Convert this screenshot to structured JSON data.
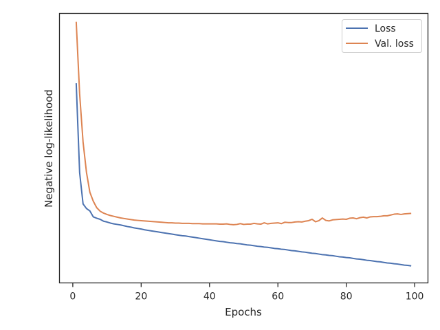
{
  "chart_data": {
    "type": "line",
    "xlabel": "Epochs",
    "ylabel": "Negative log-likelihood",
    "xlim": [
      -3.9,
      103.9
    ],
    "ylim": [
      0.0,
      1.0
    ],
    "y_tick_labels_shown": false,
    "x_ticks": [
      0,
      20,
      40,
      60,
      80,
      100
    ],
    "x_tick_labels": [
      "0",
      "20",
      "40",
      "60",
      "80",
      "100"
    ],
    "grid": false,
    "legend_position": "top-right",
    "x": [
      1,
      2,
      3,
      4,
      5,
      6,
      7,
      8,
      9,
      10,
      11,
      12,
      13,
      14,
      15,
      16,
      17,
      18,
      19,
      20,
      21,
      22,
      23,
      24,
      25,
      26,
      27,
      28,
      29,
      30,
      31,
      32,
      33,
      34,
      35,
      36,
      37,
      38,
      39,
      40,
      41,
      42,
      43,
      44,
      45,
      46,
      47,
      48,
      49,
      50,
      51,
      52,
      53,
      54,
      55,
      56,
      57,
      58,
      59,
      60,
      61,
      62,
      63,
      64,
      65,
      66,
      67,
      68,
      69,
      70,
      71,
      72,
      73,
      74,
      75,
      76,
      77,
      78,
      79,
      80,
      81,
      82,
      83,
      84,
      85,
      86,
      87,
      88,
      89,
      90,
      91,
      92,
      93,
      94,
      95,
      96,
      97,
      98,
      99
    ],
    "series": [
      {
        "name": "Loss",
        "color": "#4c72b0",
        "values": [
          0.741,
          0.409,
          0.293,
          0.276,
          0.267,
          0.245,
          0.24,
          0.236,
          0.229,
          0.226,
          0.222,
          0.219,
          0.217,
          0.215,
          0.212,
          0.209,
          0.207,
          0.204,
          0.202,
          0.2,
          0.197,
          0.195,
          0.193,
          0.191,
          0.189,
          0.187,
          0.185,
          0.183,
          0.181,
          0.179,
          0.177,
          0.175,
          0.174,
          0.172,
          0.17,
          0.168,
          0.166,
          0.164,
          0.162,
          0.16,
          0.158,
          0.156,
          0.154,
          0.153,
          0.151,
          0.149,
          0.148,
          0.146,
          0.145,
          0.143,
          0.141,
          0.14,
          0.138,
          0.136,
          0.135,
          0.133,
          0.132,
          0.13,
          0.128,
          0.127,
          0.125,
          0.124,
          0.122,
          0.12,
          0.119,
          0.117,
          0.115,
          0.114,
          0.112,
          0.11,
          0.109,
          0.107,
          0.105,
          0.104,
          0.102,
          0.101,
          0.099,
          0.097,
          0.096,
          0.094,
          0.093,
          0.091,
          0.089,
          0.088,
          0.086,
          0.084,
          0.083,
          0.081,
          0.079,
          0.078,
          0.076,
          0.074,
          0.073,
          0.071,
          0.07,
          0.068,
          0.066,
          0.065,
          0.063
        ]
      },
      {
        "name": "Val. loss",
        "color": "#dd8452",
        "values": [
          0.969,
          0.701,
          0.523,
          0.41,
          0.336,
          0.303,
          0.279,
          0.266,
          0.259,
          0.254,
          0.25,
          0.247,
          0.244,
          0.241,
          0.239,
          0.237,
          0.235,
          0.233,
          0.232,
          0.231,
          0.23,
          0.229,
          0.228,
          0.227,
          0.226,
          0.225,
          0.224,
          0.223,
          0.223,
          0.222,
          0.222,
          0.221,
          0.221,
          0.221,
          0.22,
          0.22,
          0.22,
          0.219,
          0.219,
          0.219,
          0.219,
          0.219,
          0.218,
          0.218,
          0.219,
          0.217,
          0.216,
          0.217,
          0.22,
          0.217,
          0.218,
          0.218,
          0.221,
          0.219,
          0.218,
          0.223,
          0.219,
          0.221,
          0.222,
          0.223,
          0.22,
          0.225,
          0.224,
          0.224,
          0.226,
          0.227,
          0.226,
          0.229,
          0.231,
          0.236,
          0.227,
          0.231,
          0.241,
          0.232,
          0.23,
          0.234,
          0.235,
          0.236,
          0.237,
          0.236,
          0.24,
          0.241,
          0.238,
          0.242,
          0.244,
          0.241,
          0.245,
          0.246,
          0.246,
          0.247,
          0.249,
          0.249,
          0.252,
          0.255,
          0.256,
          0.254,
          0.256,
          0.257,
          0.258
        ]
      }
    ]
  }
}
